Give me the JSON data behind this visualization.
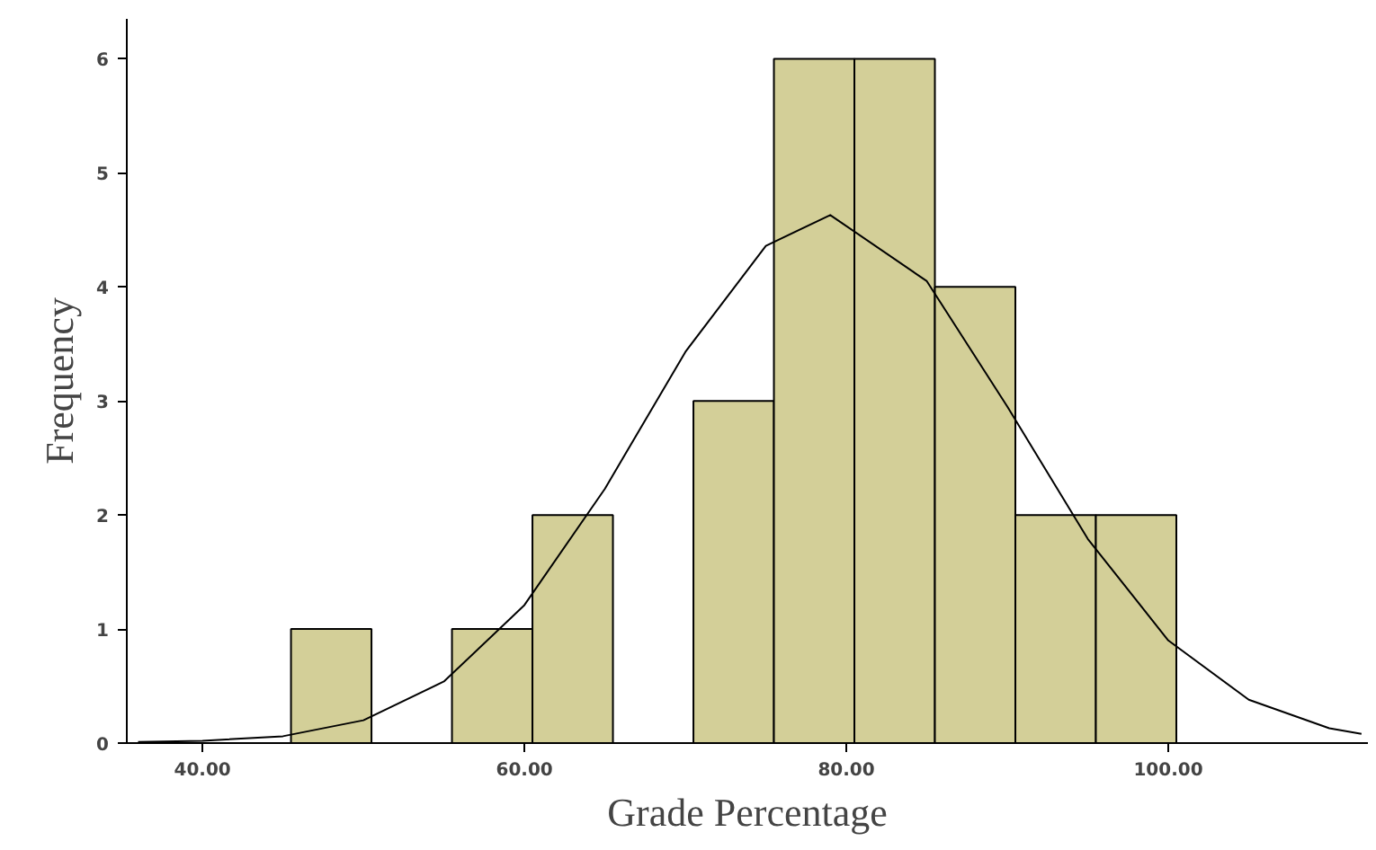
{
  "chart_data": {
    "type": "histogram",
    "xlabel": "Grade Percentage",
    "ylabel": "Frequency",
    "bins": [
      45.5,
      50.5,
      55.5,
      60.5,
      65.5,
      70.5,
      75.5,
      80.5,
      85.5,
      90.5,
      95.5,
      100.5
    ],
    "values": [
      1,
      0,
      1,
      2,
      0,
      3,
      6,
      6,
      4,
      2,
      2
    ],
    "color": "#d3cf98",
    "xlim": [
      35.3,
      112.4
    ],
    "ylim": [
      0,
      6.35
    ],
    "xticks": [
      {
        "value": 40,
        "label": "40.00"
      },
      {
        "value": 60,
        "label": "60.00"
      },
      {
        "value": 80,
        "label": "80.00"
      },
      {
        "value": 100,
        "label": "100.00"
      }
    ],
    "yticks": [
      0,
      1,
      2,
      3,
      4,
      5,
      6
    ],
    "grid": false,
    "series": [
      {
        "type": "line",
        "color": "#000000",
        "x": [
          36,
          40,
          45,
          50,
          55,
          60,
          65,
          70,
          75,
          79,
          85,
          90,
          95,
          100,
          105,
          110,
          112
        ],
        "values": [
          0.01,
          0.02,
          0.06,
          0.2,
          0.54,
          1.21,
          2.23,
          3.43,
          4.36,
          4.63,
          4.05,
          2.95,
          1.79,
          0.9,
          0.38,
          0.13,
          0.08
        ]
      }
    ]
  }
}
